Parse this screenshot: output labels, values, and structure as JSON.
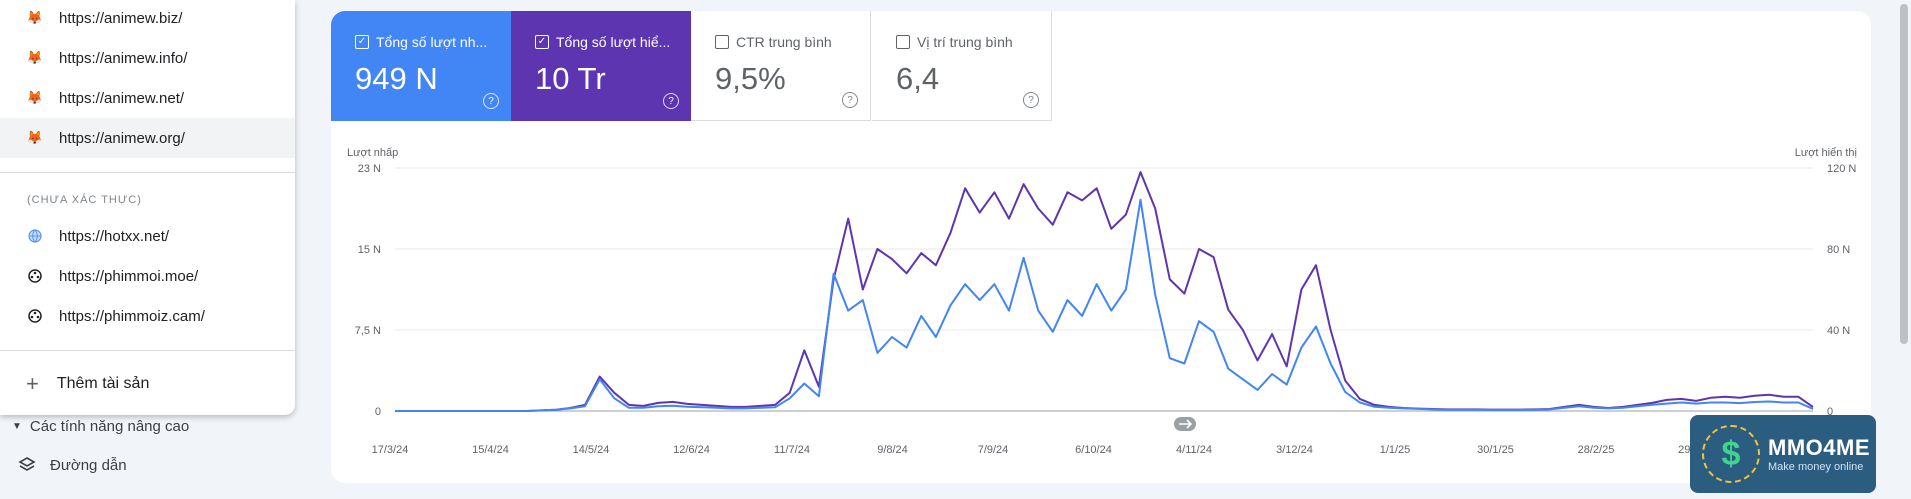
{
  "dropdown": {
    "verified": [
      {
        "url": "https://animew.biz/",
        "icon": "fox-favicon-icon"
      },
      {
        "url": "https://animew.info/",
        "icon": "fox-favicon-icon"
      },
      {
        "url": "https://animew.net/",
        "icon": "fox-favicon-icon"
      },
      {
        "url": "https://animew.org/",
        "icon": "fox-favicon-icon"
      }
    ],
    "unverified_heading": "(CHƯA XÁC THỰC)",
    "unverified": [
      {
        "url": "https://hotxx.net/",
        "icon": "globe-favicon-icon"
      },
      {
        "url": "https://phimmoi.moe/",
        "icon": "film-reel-favicon-icon"
      },
      {
        "url": "https://phimmoiz.cam/",
        "icon": "film-reel-favicon-icon"
      }
    ],
    "add_property": "Thêm tài sản"
  },
  "sidebar": {
    "advanced_features": "Các tính năng nâng cao",
    "paths": "Đường dẫn"
  },
  "metrics": [
    {
      "label": "Tổng số lượt nh...",
      "value": "949 N",
      "checked": true,
      "color": "#4285f4"
    },
    {
      "label": "Tổng số lượt hiể...",
      "value": "10 Tr",
      "checked": true,
      "color": "#5e35b1"
    },
    {
      "label": "CTR trung bình",
      "value": "9,5%",
      "checked": false
    },
    {
      "label": "Vị trí trung bình",
      "value": "6,4",
      "checked": false
    }
  ],
  "chart_data": {
    "type": "line",
    "ylabel_left": "Lượt nhấp",
    "ylabel_right": "Lượt hiển thị",
    "y_left_ticks": [
      "23 N",
      "15 N",
      "7,5 N",
      "0"
    ],
    "y_right_ticks": [
      "120 N",
      "80 N",
      "40 N",
      "0"
    ],
    "ylim_left": [
      0,
      23000
    ],
    "ylim_right": [
      0,
      120000
    ],
    "x_ticks": [
      "17/3/24",
      "15/4/24",
      "14/5/24",
      "12/6/24",
      "11/7/24",
      "9/8/24",
      "7/9/24",
      "6/10/24",
      "4/11/24",
      "3/12/24",
      "1/1/25",
      "30/1/25",
      "28/2/25",
      "29/3/25"
    ],
    "series": [
      {
        "name": "Lượt hiển thị",
        "axis": "right",
        "color": "#5e35b1",
        "values": [
          0,
          0,
          0,
          0,
          0,
          0,
          0,
          0,
          0,
          0,
          300,
          600,
          1500,
          3000,
          17000,
          9000,
          3000,
          2500,
          4000,
          4500,
          3500,
          3000,
          2500,
          2000,
          2000,
          2500,
          3000,
          9000,
          30000,
          12000,
          65000,
          95000,
          60000,
          80000,
          75000,
          68000,
          78000,
          72000,
          88000,
          110000,
          98000,
          108000,
          95000,
          112000,
          100000,
          92000,
          108000,
          104000,
          110000,
          90000,
          97000,
          118000,
          100000,
          65000,
          58000,
          80000,
          76000,
          50000,
          40000,
          25000,
          38000,
          22000,
          60000,
          72000,
          40000,
          15000,
          6000,
          3000,
          2000,
          1500,
          1200,
          1000,
          800,
          800,
          800,
          700,
          700,
          700,
          800,
          1000,
          2000,
          3000,
          2000,
          1500,
          2000,
          3000,
          4000,
          5500,
          6000,
          5000,
          6500,
          7000,
          6500,
          7500,
          8000,
          7000,
          7000,
          2000
        ]
      },
      {
        "name": "Lượt nhấp",
        "axis": "left",
        "color": "#4285f4",
        "values": [
          0,
          0,
          0,
          0,
          0,
          0,
          0,
          0,
          0,
          0,
          60,
          110,
          250,
          450,
          3000,
          1200,
          300,
          300,
          450,
          500,
          400,
          350,
          300,
          250,
          250,
          300,
          350,
          1200,
          2600,
          1400,
          13000,
          9500,
          10500,
          5500,
          7000,
          6000,
          9000,
          7000,
          10000,
          12000,
          10500,
          12000,
          9500,
          14500,
          9500,
          7500,
          10500,
          9000,
          12000,
          9500,
          11500,
          20000,
          11000,
          5000,
          4500,
          8500,
          7500,
          4000,
          3000,
          2000,
          3500,
          2500,
          6000,
          8000,
          4500,
          1800,
          800,
          400,
          300,
          250,
          200,
          150,
          120,
          120,
          120,
          100,
          100,
          100,
          120,
          150,
          300,
          450,
          300,
          250,
          300,
          450,
          600,
          700,
          800,
          700,
          800,
          800,
          750,
          850,
          900,
          800,
          800,
          200
        ]
      }
    ],
    "ylim": [
      0,
      23000
    ]
  },
  "watermark": {
    "brand": "MMO4ME",
    "tagline": "Make money online",
    "symbol": "$"
  }
}
